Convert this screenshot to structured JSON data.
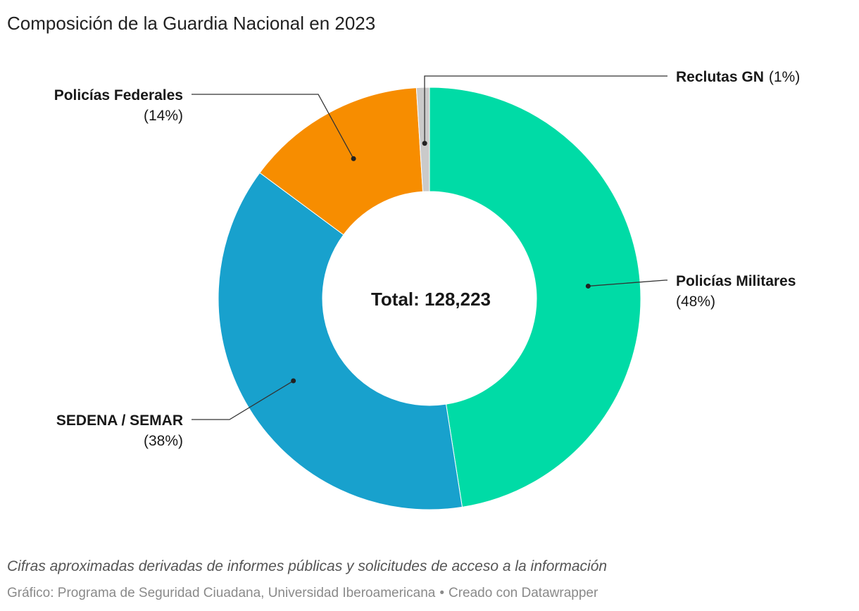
{
  "chart_data": {
    "type": "pie",
    "subtype": "donut",
    "title": "Composición de la Guardia Nacional en 2023",
    "center_label": "Total: 128,223",
    "slices": [
      {
        "name": "Policías Militares",
        "percent_label": "(48%)",
        "value": 48,
        "color": "#00DBA6"
      },
      {
        "name": "SEDENA / SEMAR",
        "percent_label": "(38%)",
        "value": 38,
        "color": "#18A1CD"
      },
      {
        "name": "Policías Federales",
        "percent_label": "(14%)",
        "value": 14,
        "color": "#F78D00"
      },
      {
        "name": "Reclutas GN",
        "percent_label": "(1%)",
        "value": 1,
        "color": "#CACACA"
      }
    ]
  },
  "footer": {
    "notes": "Cifras aproximadas derivadas de informes públicas y solicitudes de acceso a la información",
    "source": "Gráfico: Programa de Seguridad Ciuadana, Universidad Iberoamericana",
    "separator": "•",
    "credit": "Creado con Datawrapper"
  }
}
